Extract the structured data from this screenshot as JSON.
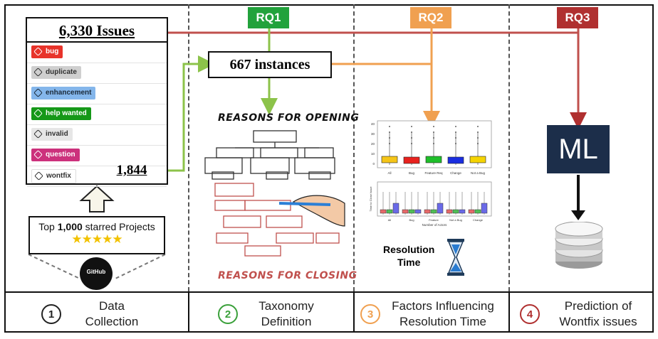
{
  "header": {
    "rq1": {
      "label": "RQ1",
      "color": "#22a23c"
    },
    "rq2": {
      "label": "RQ2",
      "color": "#f0a050"
    },
    "rq3": {
      "label": "RQ3",
      "color": "#b03030"
    }
  },
  "issues_box": {
    "text": "6,330 Issues"
  },
  "instances_box": {
    "text": "667 instances"
  },
  "labels": [
    {
      "text": "bug",
      "bg": "#e8332a",
      "fg": "#ffffff"
    },
    {
      "text": "duplicate",
      "bg": "#cfcfcf",
      "fg": "#333333"
    },
    {
      "text": "enhancement",
      "bg": "#84b6eb",
      "fg": "#1b2a3a"
    },
    {
      "text": "help wanted",
      "bg": "#159818",
      "fg": "#ffffff"
    },
    {
      "text": "invalid",
      "bg": "#e6e6e6",
      "fg": "#333333"
    },
    {
      "text": "question",
      "bg": "#cc317c",
      "fg": "#ffffff"
    },
    {
      "text": "wontfix",
      "bg": "#ffffff",
      "fg": "#333333"
    }
  ],
  "wontfix_count": "1,844",
  "projects": {
    "prefix": "Top ",
    "bold": "1,000",
    "suffix": " starred Projects",
    "github": "GitHub"
  },
  "taxonomy": {
    "opening": "REASONS FOR OPENING",
    "closing": "REASONS FOR CLOSING"
  },
  "resolution": {
    "line1": "Resolution",
    "line2": "Time"
  },
  "ml": {
    "text": "ML"
  },
  "boxplot_top": {
    "categories": [
      "All",
      "Bug",
      "Feature Req",
      "Change",
      "Not a Bug"
    ],
    "yticks": [
      "40",
      "30",
      "20",
      "10",
      "0"
    ]
  },
  "boxplot_bottom": {
    "categories": [
      "All",
      "Bug",
      "Feature",
      "Not a Bug",
      "Change"
    ],
    "xlabel": "Number of Actors",
    "ylabel": "Time to Close Issue"
  },
  "steps": [
    {
      "num": "1",
      "line1": "Data",
      "line2": "Collection",
      "color": "#222222"
    },
    {
      "num": "2",
      "line1": "Taxonomy",
      "line2": "Definition",
      "color": "#3aa03a"
    },
    {
      "num": "3",
      "line1": "Factors Influencing",
      "line2": "Resolution Time",
      "color": "#f0a050"
    },
    {
      "num": "4",
      "line1": "Prediction of",
      "line2": "Wontfix issues",
      "color": "#b03030"
    }
  ]
}
